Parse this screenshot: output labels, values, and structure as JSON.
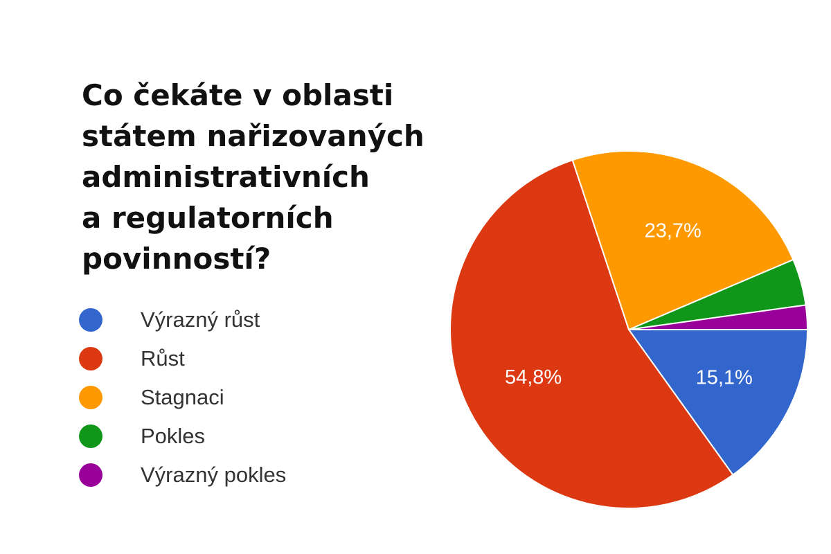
{
  "chart_data": {
    "type": "pie",
    "title_lines": [
      "Co čekáte v oblasti",
      "státem nařizovaných",
      "administrativních",
      "a regulatorních",
      "povinností?"
    ],
    "slices": [
      {
        "name": "Výrazný růst",
        "value": 15.1,
        "label": "15,1%",
        "color": "#3366cc"
      },
      {
        "name": "Růst",
        "value": 54.8,
        "label": "54,8%",
        "color": "#dc3912"
      },
      {
        "name": "Stagnaci",
        "value": 23.7,
        "label": "23,7%",
        "color": "#ff9900"
      },
      {
        "name": "Pokles",
        "value": 4.2,
        "label": "",
        "color": "#109618"
      },
      {
        "name": "Výrazný pokles",
        "value": 2.2,
        "label": "",
        "color": "#990099"
      }
    ],
    "legend_position": "left"
  }
}
